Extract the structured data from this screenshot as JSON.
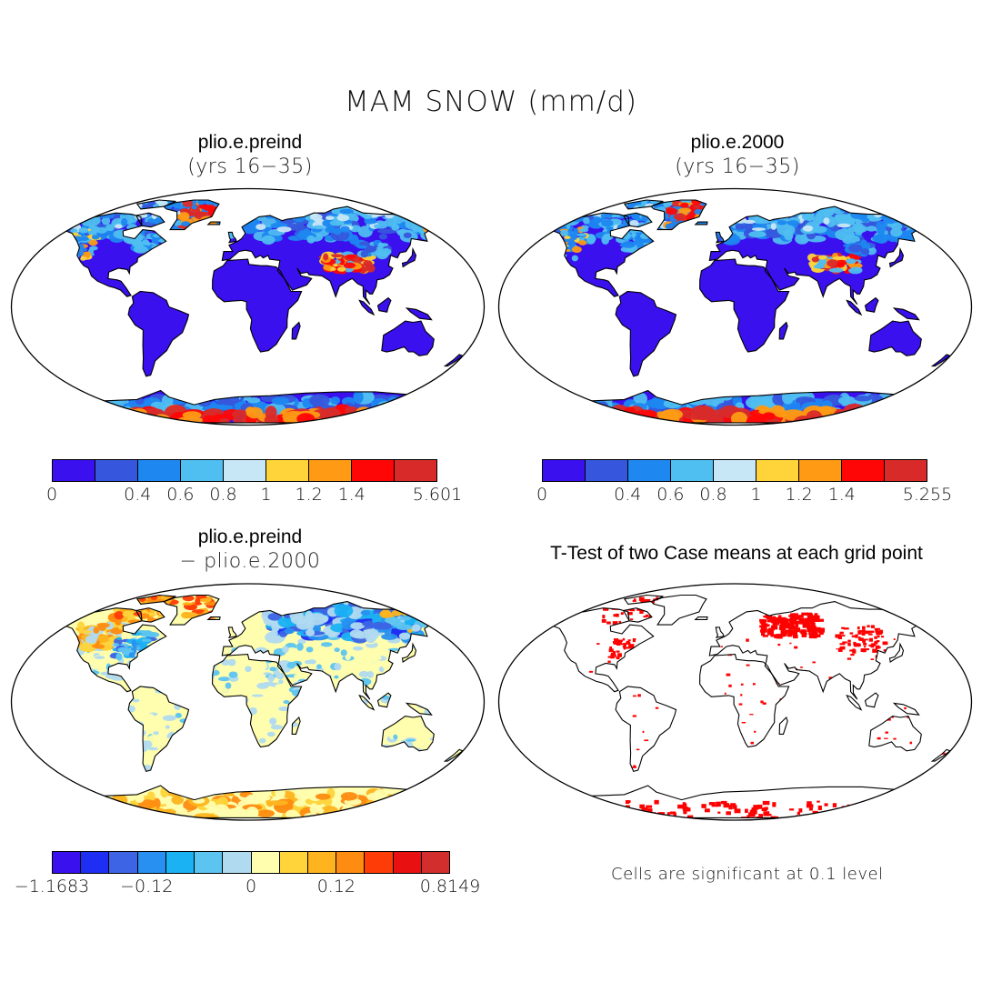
{
  "title": "MAM SNOW (mm/d)",
  "panels": [
    {
      "id": "tl",
      "title": "plio.e.preind",
      "subtitle": "(yrs 16−35)"
    },
    {
      "id": "tr",
      "title": "plio.e.2000",
      "subtitle": "(yrs 16−35)"
    },
    {
      "id": "bl",
      "title": "plio.e.preind",
      "subtitle": "− plio.e.2000"
    },
    {
      "id": "br",
      "title": "T-Test of two Case means at each grid point",
      "subtitle": ""
    }
  ],
  "colorbars": {
    "tl": {
      "colors": [
        "#3a10ee",
        "#3657dd",
        "#1e87f0",
        "#4fbef0",
        "#c7e6f6",
        "#fed43a",
        "#fe9a14",
        "#fe0606",
        "#d92a2a"
      ],
      "ticks": [
        {
          "label": "0",
          "at": 0
        },
        {
          "label": "0.4",
          "at": 2
        },
        {
          "label": "0.6",
          "at": 3
        },
        {
          "label": "0.8",
          "at": 4
        },
        {
          "label": "1",
          "at": 5
        },
        {
          "label": "1.2",
          "at": 6
        },
        {
          "label": "1.4",
          "at": 7
        },
        {
          "label": "5.601",
          "at": 9
        }
      ]
    },
    "tr": {
      "colors": [
        "#3a10ee",
        "#3657dd",
        "#1e87f0",
        "#4fbef0",
        "#c7e6f6",
        "#fed43a",
        "#fe9a14",
        "#fe0606",
        "#d92a2a"
      ],
      "ticks": [
        {
          "label": "0",
          "at": 0
        },
        {
          "label": "0.4",
          "at": 2
        },
        {
          "label": "0.6",
          "at": 3
        },
        {
          "label": "0.8",
          "at": 4
        },
        {
          "label": "1",
          "at": 5
        },
        {
          "label": "1.2",
          "at": 6
        },
        {
          "label": "1.4",
          "at": 7
        },
        {
          "label": "5.255",
          "at": 9
        }
      ]
    },
    "bl": {
      "colors": [
        "#3a10ee",
        "#1f2ef3",
        "#3c64e4",
        "#2790f0",
        "#1ab2f3",
        "#5cc4f0",
        "#b0daf0",
        "#fefeae",
        "#fed43a",
        "#feb41e",
        "#fe8c10",
        "#fe3c08",
        "#e81010",
        "#d22e2e"
      ],
      "ticks": [
        {
          "label": "−1.1683",
          "at": 0
        },
        {
          "label": "−0.12",
          "at": 3.33
        },
        {
          "label": "0",
          "at": 7
        },
        {
          "label": "0.12",
          "at": 10
        },
        {
          "label": "0.8149",
          "at": 14
        }
      ]
    }
  },
  "significance_note": "Cells are significant at 0.1 level",
  "map_colors": {
    "ocean": "#ffffff",
    "coast": "#000000",
    "significant": "#fe0000"
  }
}
